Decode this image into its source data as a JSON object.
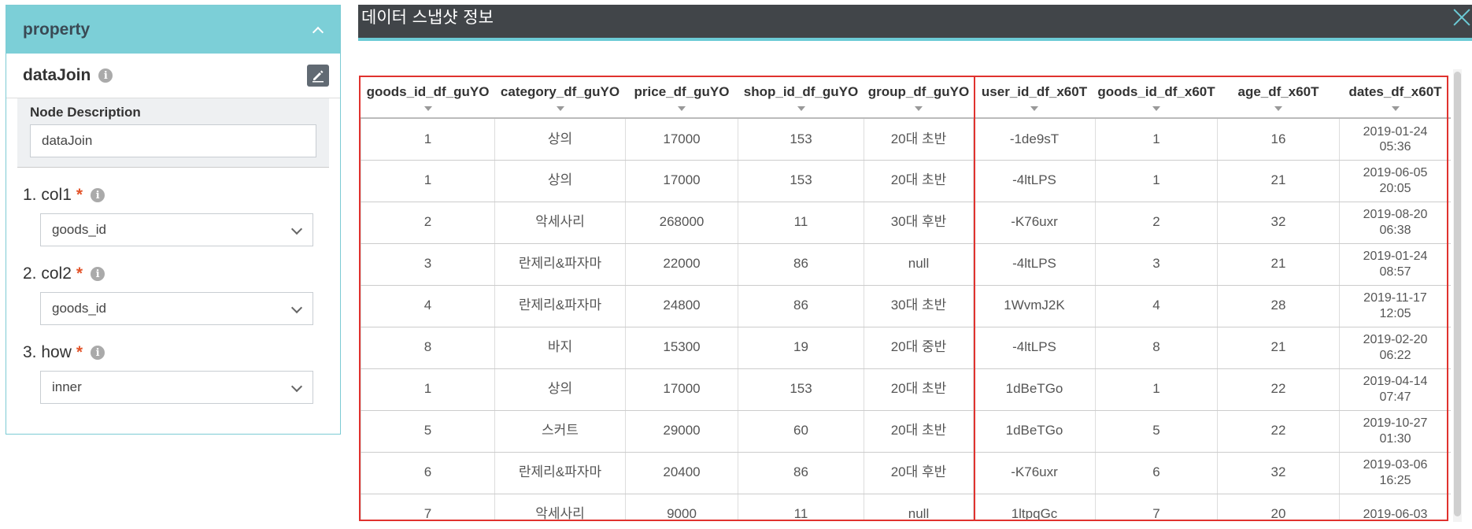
{
  "property_panel": {
    "header": "property",
    "node_name": "dataJoin",
    "description_label": "Node Description",
    "description_value": "dataJoin",
    "fields": [
      {
        "label": "1. col1",
        "required": "*",
        "value": "goods_id"
      },
      {
        "label": "2. col2",
        "required": "*",
        "value": "goods_id"
      },
      {
        "label": "3. how",
        "required": "*",
        "value": "inner"
      }
    ]
  },
  "snapshot": {
    "title": "데이터 스냅샷 정보",
    "columns": [
      "goods_id_df_guYO",
      "category_df_guYO",
      "price_df_guYO",
      "shop_id_df_guYO",
      "group_df_guYO",
      "user_id_df_x60T",
      "goods_id_df_x60T",
      "age_df_x60T",
      "dates_df_x60T"
    ],
    "rows": [
      [
        "1",
        "상의",
        "17000",
        "153",
        "20대 초반",
        "-1de9sT",
        "1",
        "16",
        "2019-01-24",
        "05:36"
      ],
      [
        "1",
        "상의",
        "17000",
        "153",
        "20대 초반",
        "-4ltLPS",
        "1",
        "21",
        "2019-06-05",
        "20:05"
      ],
      [
        "2",
        "악세사리",
        "268000",
        "11",
        "30대 후반",
        "-K76uxr",
        "2",
        "32",
        "2019-08-20",
        "06:38"
      ],
      [
        "3",
        "란제리&파자마",
        "22000",
        "86",
        "null",
        "-4ltLPS",
        "3",
        "21",
        "2019-01-24",
        "08:57"
      ],
      [
        "4",
        "란제리&파자마",
        "24800",
        "86",
        "30대 초반",
        "1WvmJ2K",
        "4",
        "28",
        "2019-11-17",
        "12:05"
      ],
      [
        "8",
        "바지",
        "15300",
        "19",
        "20대 중반",
        "-4ltLPS",
        "8",
        "21",
        "2019-02-20",
        "06:22"
      ],
      [
        "1",
        "상의",
        "17000",
        "153",
        "20대 초반",
        "1dBeTGo",
        "1",
        "22",
        "2019-04-14",
        "07:47"
      ],
      [
        "5",
        "스커트",
        "29000",
        "60",
        "20대 초반",
        "1dBeTGo",
        "5",
        "22",
        "2019-10-27",
        "01:30"
      ],
      [
        "6",
        "란제리&파자마",
        "20400",
        "86",
        "20대 후반",
        "-K76uxr",
        "6",
        "32",
        "2019-03-06",
        "16:25"
      ],
      [
        "7",
        "악세사리",
        "9000",
        "11",
        "null",
        "1ltpqGc",
        "7",
        "20",
        "2019-06-03",
        ""
      ]
    ]
  },
  "colors": {
    "panel_header": "#7ccfd7",
    "dialog_title": "#414549",
    "highlight": "#e0322e",
    "accent": "#6ccbd6"
  }
}
